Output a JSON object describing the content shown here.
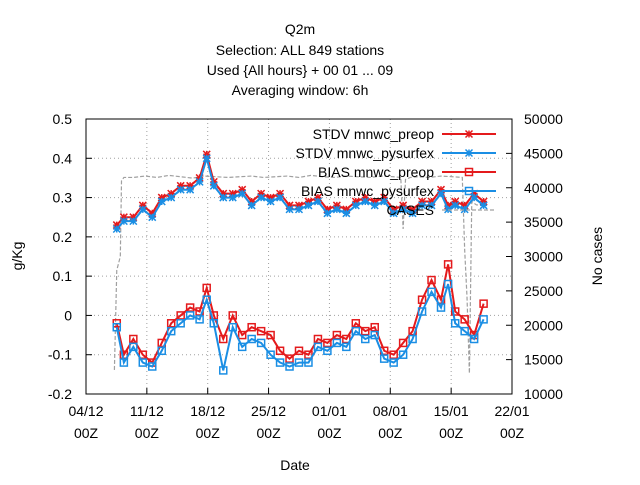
{
  "chart_data": {
    "type": "line",
    "title_lines": [
      "Q2m",
      "Selection: ALL    849 stations",
      "Used {All hours} + 00 01 ... 09",
      "Averaging window:  6h"
    ],
    "xlabel": "Date",
    "ylabel": "g/Kg",
    "y2label": "No cases",
    "grid": true,
    "legend_position": "top-right",
    "xlim_days": [
      0,
      18
    ],
    "x_ticks": [
      {
        "day": 0,
        "line1": "04/12",
        "line2": "00Z"
      },
      {
        "day": 2.571,
        "line1": "11/12",
        "line2": "00Z"
      },
      {
        "day": 5.143,
        "line1": "18/12",
        "line2": "00Z"
      },
      {
        "day": 7.714,
        "line1": "25/12",
        "line2": "00Z"
      },
      {
        "day": 10.286,
        "line1": "01/01",
        "line2": "00Z"
      },
      {
        "day": 12.857,
        "line1": "08/01",
        "line2": "00Z"
      },
      {
        "day": 15.429,
        "line1": "15/01",
        "line2": "00Z"
      },
      {
        "day": 18,
        "line1": "22/01",
        "line2": "00Z"
      }
    ],
    "ylim": [
      -0.2,
      0.5
    ],
    "y_ticks": [
      "-0.2",
      "-0.1",
      "0",
      "0.1",
      "0.2",
      "0.3",
      "0.4",
      "0.5"
    ],
    "y2lim": [
      10000,
      50000
    ],
    "y2_ticks": [
      "10000",
      "15000",
      "20000",
      "25000",
      "30000",
      "35000",
      "40000",
      "45000",
      "50000"
    ],
    "series": [
      {
        "name": "STDV mnwc_preop",
        "axis": "y1",
        "color": "#e41a1c",
        "marker": "star",
        "x": [
          1.3,
          1.6,
          2.0,
          2.4,
          2.8,
          3.2,
          3.6,
          4.0,
          4.4,
          4.8,
          5.1,
          5.4,
          5.8,
          6.2,
          6.6,
          7.0,
          7.4,
          7.8,
          8.2,
          8.6,
          9.0,
          9.4,
          9.8,
          10.2,
          10.6,
          11.0,
          11.4,
          11.8,
          12.2,
          12.6,
          13.0,
          13.4,
          13.8,
          14.2,
          14.6,
          15.0,
          15.3,
          15.6,
          16.0,
          16.4,
          16.8
        ],
        "y": [
          0.23,
          0.25,
          0.25,
          0.28,
          0.26,
          0.3,
          0.31,
          0.33,
          0.33,
          0.35,
          0.41,
          0.34,
          0.31,
          0.31,
          0.32,
          0.29,
          0.31,
          0.3,
          0.31,
          0.28,
          0.28,
          0.29,
          0.3,
          0.27,
          0.28,
          0.27,
          0.29,
          0.3,
          0.29,
          0.3,
          0.27,
          0.28,
          0.27,
          0.29,
          0.29,
          0.32,
          0.28,
          0.29,
          0.28,
          0.31,
          0.29
        ]
      },
      {
        "name": "STDV mnwc_pysurfex",
        "axis": "y1",
        "color": "#1a8ee4",
        "marker": "star",
        "x": [
          1.3,
          1.6,
          2.0,
          2.4,
          2.8,
          3.2,
          3.6,
          4.0,
          4.4,
          4.8,
          5.1,
          5.4,
          5.8,
          6.2,
          6.6,
          7.0,
          7.4,
          7.8,
          8.2,
          8.6,
          9.0,
          9.4,
          9.8,
          10.2,
          10.6,
          11.0,
          11.4,
          11.8,
          12.2,
          12.6,
          13.0,
          13.4,
          13.8,
          14.2,
          14.6,
          15.0,
          15.3,
          15.6,
          16.0,
          16.4,
          16.8
        ],
        "y": [
          0.22,
          0.24,
          0.24,
          0.27,
          0.25,
          0.29,
          0.3,
          0.32,
          0.32,
          0.34,
          0.4,
          0.33,
          0.3,
          0.3,
          0.31,
          0.28,
          0.3,
          0.29,
          0.3,
          0.27,
          0.27,
          0.28,
          0.29,
          0.26,
          0.27,
          0.26,
          0.28,
          0.29,
          0.28,
          0.29,
          0.26,
          0.27,
          0.26,
          0.28,
          0.28,
          0.31,
          0.27,
          0.28,
          0.27,
          0.3,
          0.28
        ]
      },
      {
        "name": "BIAS mnwc_preop",
        "axis": "y1",
        "color": "#e41a1c",
        "marker": "square",
        "x": [
          1.3,
          1.6,
          2.0,
          2.4,
          2.8,
          3.2,
          3.6,
          4.0,
          4.4,
          4.8,
          5.1,
          5.4,
          5.8,
          6.2,
          6.6,
          7.0,
          7.4,
          7.8,
          8.2,
          8.6,
          9.0,
          9.4,
          9.8,
          10.2,
          10.6,
          11.0,
          11.4,
          11.8,
          12.2,
          12.6,
          13.0,
          13.4,
          13.8,
          14.2,
          14.6,
          15.0,
          15.3,
          15.6,
          16.0,
          16.4,
          16.8
        ],
        "y": [
          -0.02,
          -0.1,
          -0.06,
          -0.1,
          -0.12,
          -0.07,
          -0.02,
          0.0,
          0.02,
          0.01,
          0.07,
          0.0,
          -0.06,
          0.0,
          -0.05,
          -0.03,
          -0.04,
          -0.05,
          -0.09,
          -0.11,
          -0.09,
          -0.1,
          -0.06,
          -0.07,
          -0.05,
          -0.06,
          -0.02,
          -0.04,
          -0.03,
          -0.09,
          -0.1,
          -0.07,
          -0.04,
          0.04,
          0.09,
          0.04,
          0.13,
          0.01,
          -0.01,
          -0.05,
          0.03
        ]
      },
      {
        "name": "BIAS mnwc_pysurfex",
        "axis": "y1",
        "color": "#1a8ee4",
        "marker": "square",
        "x": [
          1.3,
          1.6,
          2.0,
          2.4,
          2.8,
          3.2,
          3.6,
          4.0,
          4.4,
          4.8,
          5.1,
          5.4,
          5.8,
          6.2,
          6.6,
          7.0,
          7.4,
          7.8,
          8.2,
          8.6,
          9.0,
          9.4,
          9.8,
          10.2,
          10.6,
          11.0,
          11.4,
          11.8,
          12.2,
          12.6,
          13.0,
          13.4,
          13.8,
          14.2,
          14.6,
          15.0,
          15.3,
          15.6,
          16.0,
          16.4,
          16.8
        ],
        "y": [
          -0.03,
          -0.12,
          -0.08,
          -0.12,
          -0.13,
          -0.09,
          -0.04,
          -0.02,
          0.0,
          -0.01,
          0.04,
          -0.02,
          -0.14,
          -0.03,
          -0.08,
          -0.06,
          -0.07,
          -0.1,
          -0.12,
          -0.13,
          -0.12,
          -0.12,
          -0.08,
          -0.09,
          -0.07,
          -0.08,
          -0.04,
          -0.06,
          -0.05,
          -0.11,
          -0.12,
          -0.1,
          -0.06,
          0.01,
          0.06,
          0.02,
          0.08,
          -0.02,
          -0.04,
          -0.06,
          -0.01
        ]
      },
      {
        "name": "CASES",
        "axis": "y2",
        "color": "#a0a0a0",
        "marker": "none",
        "dash": true,
        "x": [
          1.2,
          1.3,
          1.45,
          1.5,
          1.6,
          2.0,
          2.5,
          3.0,
          3.5,
          4.0,
          4.5,
          5.0,
          5.5,
          6.0,
          6.5,
          7.0,
          7.5,
          8.0,
          8.5,
          9.0,
          9.5,
          10.0,
          10.5,
          11.0,
          11.5,
          12.0,
          12.5,
          13.0,
          13.3,
          13.4,
          13.5,
          13.7,
          14.0,
          14.5,
          15.0,
          15.5,
          15.9,
          16.0,
          16.1,
          16.2,
          16.3,
          16.5,
          16.8
        ],
        "y": [
          13500,
          28000,
          30000,
          41000,
          41500,
          41500,
          41700,
          41500,
          41800,
          41600,
          41400,
          41700,
          41600,
          41500,
          41600,
          41700,
          41500,
          41600,
          41700,
          41500,
          41800,
          41600,
          41500,
          41700,
          41600,
          41500,
          41700,
          41600,
          41500,
          34000,
          41200,
          41500,
          41600,
          41500,
          41700,
          41600,
          41500,
          31000,
          24000,
          13000,
          38000,
          37500,
          37500
        ]
      }
    ]
  }
}
